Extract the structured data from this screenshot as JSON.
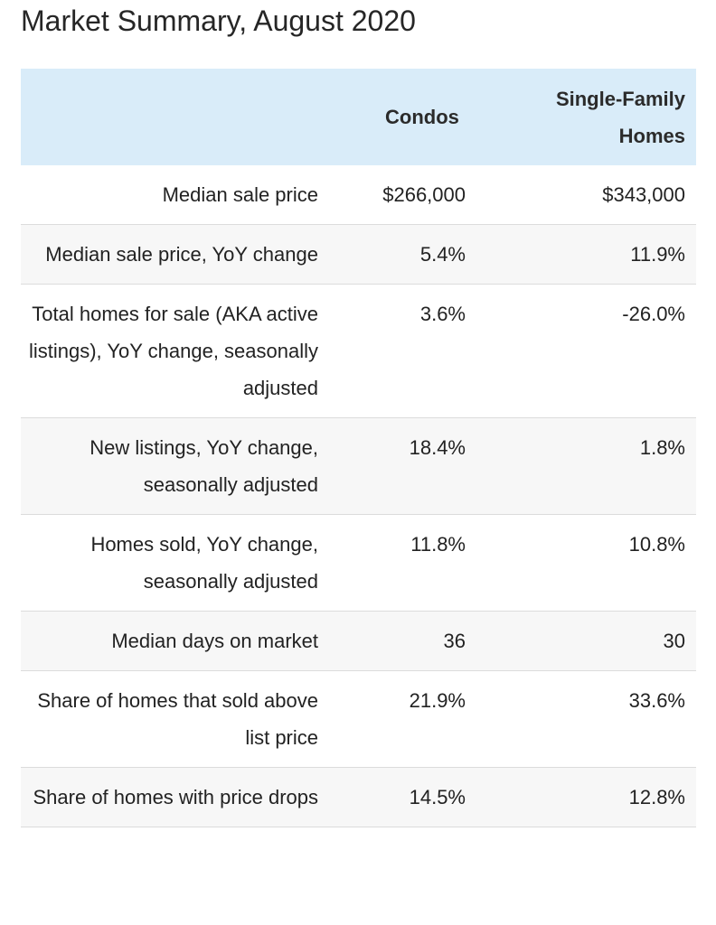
{
  "page": {
    "title": "Market Summary, August 2020"
  },
  "table": {
    "header_fill": "#d9ecf9",
    "columns": [
      "",
      "Condos",
      "Single-Family Homes"
    ],
    "rows": [
      {
        "label": "Median sale price",
        "condos": "$266,000",
        "single_family": "$343,000"
      },
      {
        "label": "Median sale price, YoY change",
        "condos": "5.4%",
        "single_family": "11.9%"
      },
      {
        "label": "Total homes for sale (AKA active listings), YoY change, seasonally adjusted",
        "condos": "3.6%",
        "single_family": "-26.0%"
      },
      {
        "label": "New listings, YoY change, seasonally adjusted",
        "condos": "18.4%",
        "single_family": "1.8%"
      },
      {
        "label": "Homes sold, YoY change, seasonally adjusted",
        "condos": "11.8%",
        "single_family": "10.8%"
      },
      {
        "label": "Median days on market",
        "condos": "36",
        "single_family": "30"
      },
      {
        "label": "Share of homes that sold above list price",
        "condos": "21.9%",
        "single_family": "33.6%"
      },
      {
        "label": "Share of homes with price drops",
        "condos": "14.5%",
        "single_family": "12.8%"
      }
    ]
  }
}
